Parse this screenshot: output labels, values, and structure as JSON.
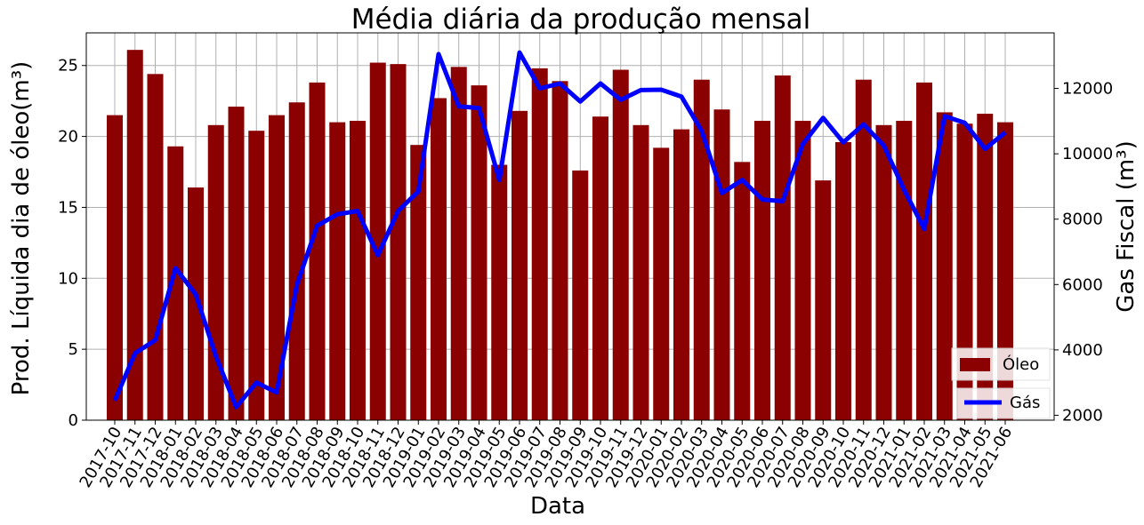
{
  "chart_data": {
    "type": "bar",
    "title": "Média diária da produção mensal",
    "xlabel": "Data",
    "ylabel": "Prod. Líquida dia de óleo(m³)",
    "y2label": "Gas Fiscal (m³)",
    "categories": [
      "2017-10",
      "2017-11",
      "2017-12",
      "2018-01",
      "2018-02",
      "2018-03",
      "2018-04",
      "2018-05",
      "2018-06",
      "2018-07",
      "2018-08",
      "2018-09",
      "2018-10",
      "2018-11",
      "2018-12",
      "2019-01",
      "2019-02",
      "2019-03",
      "2019-04",
      "2019-05",
      "2019-06",
      "2019-07",
      "2019-08",
      "2019-09",
      "2019-10",
      "2019-11",
      "2019-12",
      "2020-01",
      "2020-02",
      "2020-03",
      "2020-04",
      "2020-05",
      "2020-06",
      "2020-07",
      "2020-08",
      "2020-09",
      "2020-10",
      "2020-11",
      "2020-12",
      "2021-01",
      "2021-02",
      "2021-03",
      "2021-04",
      "2021-05",
      "2021-06"
    ],
    "series": [
      {
        "name": "Óleo",
        "type": "bar",
        "axis": "left",
        "color": "#8b0000",
        "values": [
          21.5,
          26.1,
          24.4,
          19.3,
          16.4,
          20.8,
          22.1,
          20.4,
          21.5,
          22.4,
          23.8,
          21.0,
          21.1,
          25.2,
          25.1,
          19.4,
          22.7,
          24.9,
          23.6,
          18.0,
          21.8,
          24.8,
          23.9,
          17.6,
          21.4,
          24.7,
          20.8,
          19.2,
          20.5,
          24.0,
          21.9,
          18.2,
          21.1,
          24.3,
          21.1,
          16.9,
          19.6,
          24.0,
          20.8,
          21.1,
          23.8,
          21.7,
          20.9,
          21.6,
          21.0
        ]
      },
      {
        "name": "Gás",
        "type": "line",
        "axis": "right",
        "color": "#0000ff",
        "values": [
          2450,
          3900,
          4300,
          6500,
          5700,
          3800,
          2250,
          3000,
          2700,
          6000,
          7800,
          8150,
          8250,
          6900,
          8250,
          8850,
          13050,
          11450,
          11400,
          9200,
          13100,
          12000,
          12150,
          11600,
          12150,
          11650,
          11950,
          11960,
          11750,
          10700,
          8800,
          9200,
          8600,
          8550,
          10300,
          11100,
          10350,
          10900,
          10250,
          8900,
          7700,
          11150,
          10950,
          10150,
          10650
        ]
      }
    ],
    "ylim": [
      0,
      27.3
    ],
    "yticks": [
      0,
      5,
      10,
      15,
      20,
      25
    ],
    "y2lim": [
      1850,
      13700
    ],
    "y2ticks": [
      2000,
      4000,
      6000,
      8000,
      10000,
      12000
    ],
    "grid": true,
    "legend": [
      {
        "label": "Óleo",
        "placement": "lower-right"
      },
      {
        "label": "Gás",
        "placement": "bottom-right"
      }
    ]
  }
}
